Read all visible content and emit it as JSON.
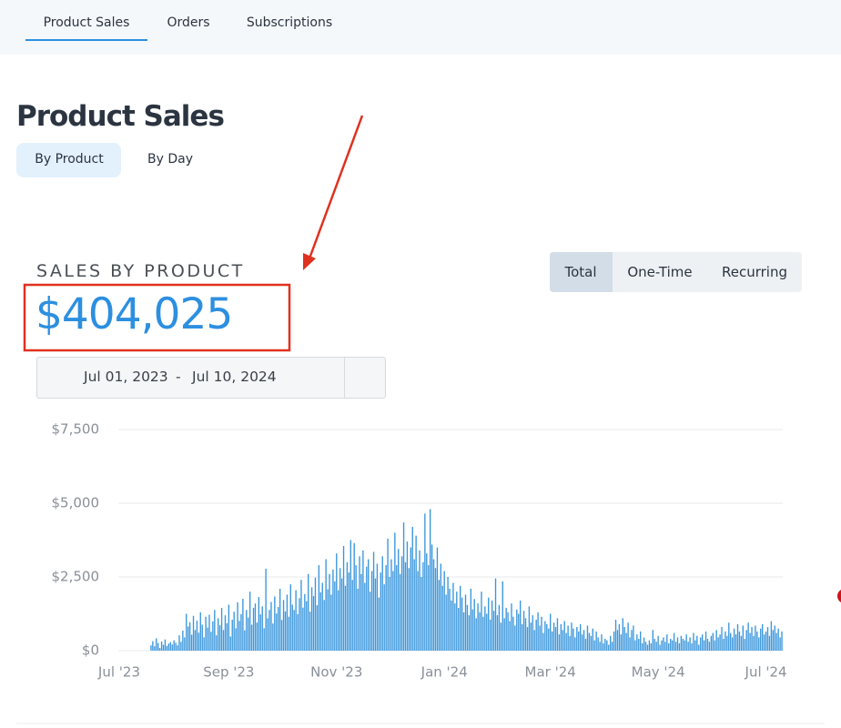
{
  "nav": {
    "tabs": [
      "Product Sales",
      "Orders",
      "Subscriptions"
    ]
  },
  "header": {
    "title": "Product Sales",
    "views": [
      "By Product",
      "By Day"
    ]
  },
  "chart_data": {
    "type": "bar",
    "title": "SALES BY PRODUCT",
    "total": "$404,025",
    "modes": [
      "Total",
      "One-Time",
      "Recurring"
    ],
    "date_range": {
      "start": "Jul 01, 2023",
      "separator": "-",
      "end": "Jul 10, 2024"
    },
    "categories": [
      "Jul '23",
      null,
      null,
      null,
      null,
      null,
      null,
      null,
      null,
      null,
      null,
      null,
      null,
      null,
      null,
      null,
      null,
      null,
      null,
      null,
      null,
      null,
      null,
      null,
      null,
      null,
      null,
      null,
      null,
      null,
      null,
      null,
      null,
      null,
      null,
      null,
      null,
      null,
      null,
      null,
      null,
      null,
      null,
      null,
      null,
      null,
      null,
      null,
      null,
      null,
      null,
      null,
      null,
      null,
      null,
      null,
      null,
      null,
      null,
      null,
      null,
      null,
      "Sep '23",
      null,
      null,
      null,
      null,
      null,
      null,
      null,
      null,
      null,
      null,
      null,
      null,
      null,
      null,
      null,
      null,
      null,
      null,
      null,
      null,
      null,
      null,
      null,
      null,
      null,
      null,
      null,
      null,
      null,
      null,
      null,
      null,
      null,
      null,
      null,
      null,
      null,
      null,
      null,
      null,
      null,
      null,
      null,
      null,
      null,
      null,
      null,
      null,
      null,
      null,
      null,
      null,
      null,
      null,
      null,
      null,
      null,
      null,
      null,
      null,
      "Nov '23",
      null,
      null,
      null,
      null,
      null,
      null,
      null,
      null,
      null,
      null,
      null,
      null,
      null,
      null,
      null,
      null,
      null,
      null,
      null,
      null,
      null,
      null,
      null,
      null,
      null,
      null,
      null,
      null,
      null,
      null,
      null,
      null,
      null,
      null,
      null,
      null,
      null,
      null,
      null,
      null,
      null,
      null,
      null,
      null,
      null,
      null,
      null,
      null,
      null,
      null,
      null,
      null,
      null,
      null,
      null,
      null,
      null,
      null,
      null,
      null,
      "Jan '24",
      null,
      null,
      null,
      null,
      null,
      null,
      null,
      null,
      null,
      null,
      null,
      null,
      null,
      null,
      null,
      null,
      null,
      null,
      null,
      null,
      null,
      null,
      null,
      null,
      null,
      null,
      null,
      null,
      null,
      null,
      null,
      null,
      null,
      null,
      null,
      null,
      null,
      null,
      null,
      null,
      null,
      null,
      null,
      null,
      null,
      null,
      null,
      null,
      null,
      null,
      null,
      null,
      null,
      null,
      null,
      null,
      null,
      null,
      null,
      "Mar '24",
      null,
      null,
      null,
      null,
      null,
      null,
      null,
      null,
      null,
      null,
      null,
      null,
      null,
      null,
      null,
      null,
      null,
      null,
      null,
      null,
      null,
      null,
      null,
      null,
      null,
      null,
      null,
      null,
      null,
      null,
      null,
      null,
      null,
      null,
      null,
      null,
      null,
      null,
      null,
      null,
      null,
      null,
      null,
      null,
      null,
      null,
      null,
      null,
      null,
      null,
      null,
      null,
      null,
      null,
      null,
      null,
      null,
      null,
      null,
      null,
      "May '24",
      null,
      null,
      null,
      null,
      null,
      null,
      null,
      null,
      null,
      null,
      null,
      null,
      null,
      null,
      null,
      null,
      null,
      null,
      null,
      null,
      null,
      null,
      null,
      null,
      null,
      null,
      null,
      null,
      null,
      null,
      null,
      null,
      null,
      null,
      null,
      null,
      null,
      null,
      null,
      null,
      null,
      null,
      null,
      null,
      null,
      null,
      null,
      null,
      null,
      null,
      null,
      null,
      null,
      null,
      null,
      null,
      null,
      null,
      null,
      null,
      "Jul '24",
      null,
      null,
      null,
      null,
      null,
      null,
      null,
      null,
      null
    ],
    "values": [
      0,
      0,
      0,
      0,
      0,
      0,
      0,
      0,
      0,
      0,
      0,
      0,
      0,
      0,
      0,
      0,
      0,
      0,
      180,
      320,
      150,
      420,
      260,
      90,
      310,
      200,
      380,
      160,
      240,
      290,
      210,
      350,
      270,
      180,
      520,
      300,
      680,
      450,
      1250,
      820,
      960,
      540,
      1180,
      700,
      1020,
      610,
      1300,
      880,
      450,
      1150,
      780,
      1220,
      640,
      990,
      1380,
      520,
      1100,
      860,
      1450,
      700,
      1200,
      930,
      1560,
      480,
      1050,
      1320,
      760,
      1640,
      1010,
      1240,
      1760,
      690,
      1380,
      1120,
      2000,
      880,
      1450,
      1600,
      950,
      1820,
      1230,
      1500,
      760,
      2780,
      1100,
      1380,
      1650,
      920,
      1840,
      1260,
      1480,
      2100,
      1040,
      1720,
      1330,
      1900,
      1150,
      2250,
      1560,
      1380,
      2050,
      1240,
      1780,
      2400,
      1460,
      1920,
      1680,
      2600,
      1320,
      2150,
      1850,
      2480,
      1540,
      2900,
      1980,
      2300,
      1720,
      3100,
      2080,
      2600,
      1900,
      2750,
      2350,
      3300,
      2050,
      2800,
      2450,
      3550,
      2200,
      3000,
      2650,
      3750,
      2400,
      3650,
      2900,
      2100,
      3200,
      2600,
      3400,
      2300,
      2850,
      3100,
      2000,
      2700,
      3350,
      2450,
      2950,
      1800,
      2650,
      3200,
      2250,
      2900,
      3800,
      2500,
      3100,
      2700,
      4000,
      2900,
      3450,
      2600,
      3200,
      4350,
      3000,
      3700,
      2800,
      3500,
      4200,
      3100,
      3900,
      2700,
      3400,
      2500,
      3000,
      4650,
      3300,
      2900,
      4800,
      3600,
      3100,
      2800,
      3500,
      2400,
      2950,
      2200,
      2700,
      1900,
      2500,
      2100,
      1700,
      2300,
      1600,
      2000,
      1450,
      2200,
      1800,
      1300,
      1900,
      1550,
      1200,
      2100,
      1400,
      1750,
      1100,
      1600,
      1300,
      2000,
      1150,
      1500,
      1250,
      1800,
      1050,
      1700,
      1350,
      2450,
      1200,
      1550,
      950,
      2350,
      1100,
      1450,
      1300,
      1000,
      1600,
      1150,
      850,
      1400,
      1250,
      1700,
      900,
      1350,
      1100,
      800,
      1500,
      950,
      1200,
      700,
      1050,
      1300,
      850,
      1150,
      600,
      1000,
      900,
      750,
      1250,
      650,
      950,
      800,
      1100,
      550,
      900,
      700,
      1000,
      600,
      850,
      500,
      950,
      750,
      450,
      800,
      650,
      900,
      550,
      700,
      400,
      850,
      600,
      500,
      750,
      350,
      650,
      450,
      300,
      550,
      250,
      400,
      350,
      200,
      500,
      300,
      650,
      1050,
      700,
      900,
      550,
      1100,
      800,
      600,
      950,
      450,
      700,
      850,
      350,
      550,
      400,
      650,
      250,
      450,
      300,
      200,
      350,
      250,
      700,
      400,
      300,
      500,
      200,
      350,
      450,
      300,
      550,
      250,
      400,
      350,
      600,
      300,
      450,
      250,
      500,
      400,
      350,
      550,
      300,
      450,
      250,
      600,
      350,
      500,
      200,
      450,
      550,
      350,
      650,
      400,
      300,
      500,
      600,
      350,
      700,
      450,
      550,
      800,
      400,
      650,
      500,
      950,
      600,
      450,
      750,
      550,
      900,
      650,
      500,
      850,
      400,
      700,
      950,
      600,
      800,
      500,
      850,
      650,
      450,
      750,
      900,
      550,
      650,
      800,
      500,
      1000,
      700,
      850,
      600,
      750,
      450,
      650
    ],
    "color": "#3a96dc",
    "ylim": [
      0,
      7500
    ],
    "yticks": [
      {
        "value": 0,
        "label": "$0"
      },
      {
        "value": 2500,
        "label": "$2,500"
      },
      {
        "value": 5000,
        "label": "$5,000"
      },
      {
        "value": 7500,
        "label": "$7,500"
      }
    ],
    "grid": true
  }
}
